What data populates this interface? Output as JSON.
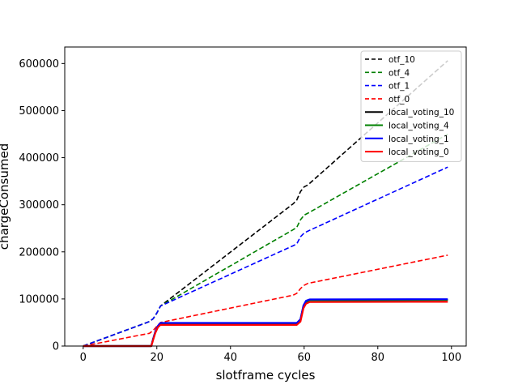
{
  "chart_data": {
    "type": "line",
    "title": "",
    "xlabel": "slotframe cycles",
    "ylabel": "chargeConsumed",
    "xlim": [
      -5,
      104
    ],
    "ylim": [
      0,
      635000
    ],
    "x_ticks": [
      0,
      20,
      40,
      60,
      80,
      100
    ],
    "y_ticks": [
      0,
      100000,
      200000,
      300000,
      400000,
      500000,
      600000
    ],
    "legend_position": "top-right",
    "grid": false,
    "series": [
      {
        "name": "otf_10",
        "color": "#000000",
        "style": "dashed",
        "points": [
          [
            0,
            0
          ],
          [
            18,
            52000
          ],
          [
            19,
            58000
          ],
          [
            20,
            70000
          ],
          [
            21,
            85000
          ],
          [
            57,
            302000
          ],
          [
            58,
            310000
          ],
          [
            59,
            328000
          ],
          [
            60,
            338000
          ],
          [
            61,
            342000
          ],
          [
            99,
            606000
          ]
        ]
      },
      {
        "name": "otf_4",
        "color": "#008000",
        "style": "dashed",
        "points": [
          [
            0,
            0
          ],
          [
            18,
            52000
          ],
          [
            19,
            58000
          ],
          [
            20,
            70000
          ],
          [
            21,
            85000
          ],
          [
            57,
            247000
          ],
          [
            58,
            252000
          ],
          [
            59,
            268000
          ],
          [
            60,
            278000
          ],
          [
            61,
            282000
          ],
          [
            99,
            450000
          ]
        ]
      },
      {
        "name": "otf_1",
        "color": "#0000ff",
        "style": "dashed",
        "points": [
          [
            0,
            0
          ],
          [
            18,
            52000
          ],
          [
            19,
            58000
          ],
          [
            20,
            70000
          ],
          [
            21,
            85000
          ],
          [
            57,
            213000
          ],
          [
            58,
            217000
          ],
          [
            59,
            232000
          ],
          [
            60,
            240000
          ],
          [
            61,
            244000
          ],
          [
            99,
            380000
          ]
        ]
      },
      {
        "name": "otf_0",
        "color": "#ff0000",
        "style": "dashed",
        "points": [
          [
            0,
            0
          ],
          [
            18,
            27000
          ],
          [
            19,
            33000
          ],
          [
            20,
            42000
          ],
          [
            21,
            50000
          ],
          [
            57,
            108000
          ],
          [
            58,
            112000
          ],
          [
            59,
            122000
          ],
          [
            60,
            129000
          ],
          [
            61,
            133000
          ],
          [
            99,
            193000
          ]
        ]
      },
      {
        "name": "local_voting_10",
        "color": "#000000",
        "style": "solid",
        "points": [
          [
            0,
            0
          ],
          [
            18.5,
            0
          ],
          [
            19,
            15000
          ],
          [
            19.6,
            30000
          ],
          [
            20.3,
            42000
          ],
          [
            21,
            48000
          ],
          [
            58,
            48000
          ],
          [
            59,
            56000
          ],
          [
            59.8,
            84000
          ],
          [
            60.5,
            94000
          ],
          [
            61.5,
            97500
          ],
          [
            99,
            98000
          ]
        ]
      },
      {
        "name": "local_voting_4",
        "color": "#008000",
        "style": "solid",
        "points": [
          [
            0,
            0
          ],
          [
            18.5,
            0
          ],
          [
            19,
            15000
          ],
          [
            19.6,
            30000
          ],
          [
            20.3,
            42000
          ],
          [
            21,
            48000
          ],
          [
            58,
            48000
          ],
          [
            59,
            56000
          ],
          [
            59.8,
            84000
          ],
          [
            60.5,
            94000
          ],
          [
            61.5,
            97500
          ],
          [
            99,
            98000
          ]
        ]
      },
      {
        "name": "local_voting_1",
        "color": "#0000ff",
        "style": "solid",
        "points": [
          [
            0,
            0
          ],
          [
            18.5,
            0
          ],
          [
            19,
            15000
          ],
          [
            19.6,
            31000
          ],
          [
            20.3,
            43000
          ],
          [
            21,
            49000
          ],
          [
            58,
            49000
          ],
          [
            59,
            57000
          ],
          [
            59.8,
            86000
          ],
          [
            60.5,
            96000
          ],
          [
            61.5,
            99000
          ],
          [
            99,
            99500
          ]
        ]
      },
      {
        "name": "local_voting_0",
        "color": "#ff0000",
        "style": "solid",
        "points": [
          [
            0,
            0
          ],
          [
            18.5,
            0
          ],
          [
            19,
            13000
          ],
          [
            19.6,
            28000
          ],
          [
            20.3,
            40000
          ],
          [
            21,
            45000
          ],
          [
            58,
            45000
          ],
          [
            59,
            52000
          ],
          [
            59.8,
            80000
          ],
          [
            60.5,
            90000
          ],
          [
            61.5,
            93500
          ],
          [
            99,
            94000
          ]
        ]
      }
    ]
  }
}
